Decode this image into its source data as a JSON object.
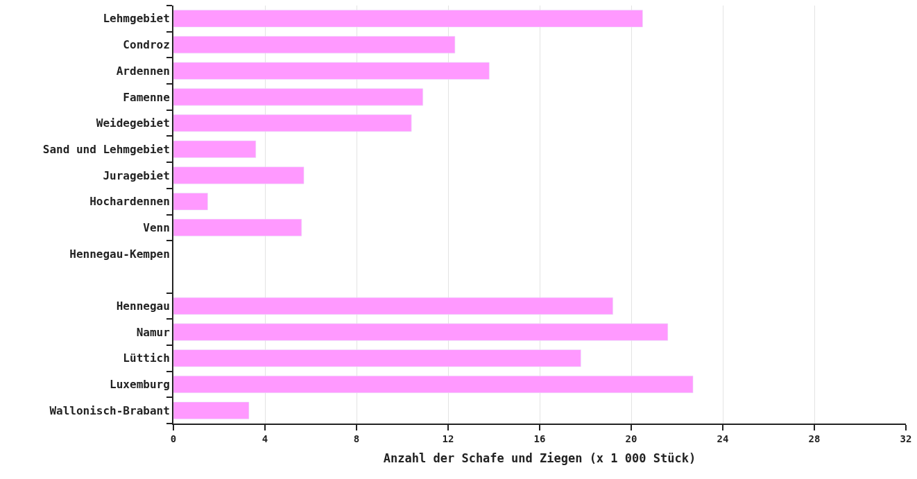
{
  "chart_data": {
    "type": "bar",
    "orientation": "horizontal",
    "xlabel": "Anzahl der Schafe und Ziegen (x 1 000 Stück)",
    "categories": [
      "Lehmgebiet",
      "Condroz",
      "Ardennen",
      "Famenne",
      "Weidegebiet",
      "Sand und Lehmgebiet",
      "Juragebiet",
      "Hochardennen",
      "Venn",
      "Hennegau-Kempen",
      null,
      "Hennegau",
      "Namur",
      "Lüttich",
      "Luxemburg",
      "Wallonisch-Brabant"
    ],
    "values": [
      20.5,
      12.3,
      13.8,
      10.9,
      10.4,
      3.6,
      5.7,
      1.5,
      5.6,
      null,
      null,
      19.2,
      21.6,
      17.8,
      22.7,
      3.3
    ],
    "color": "#ff99ff",
    "xlim": [
      0,
      32
    ],
    "xticks": [
      0,
      4,
      8,
      12,
      16,
      20,
      24,
      28,
      32
    ],
    "grid": "x"
  }
}
